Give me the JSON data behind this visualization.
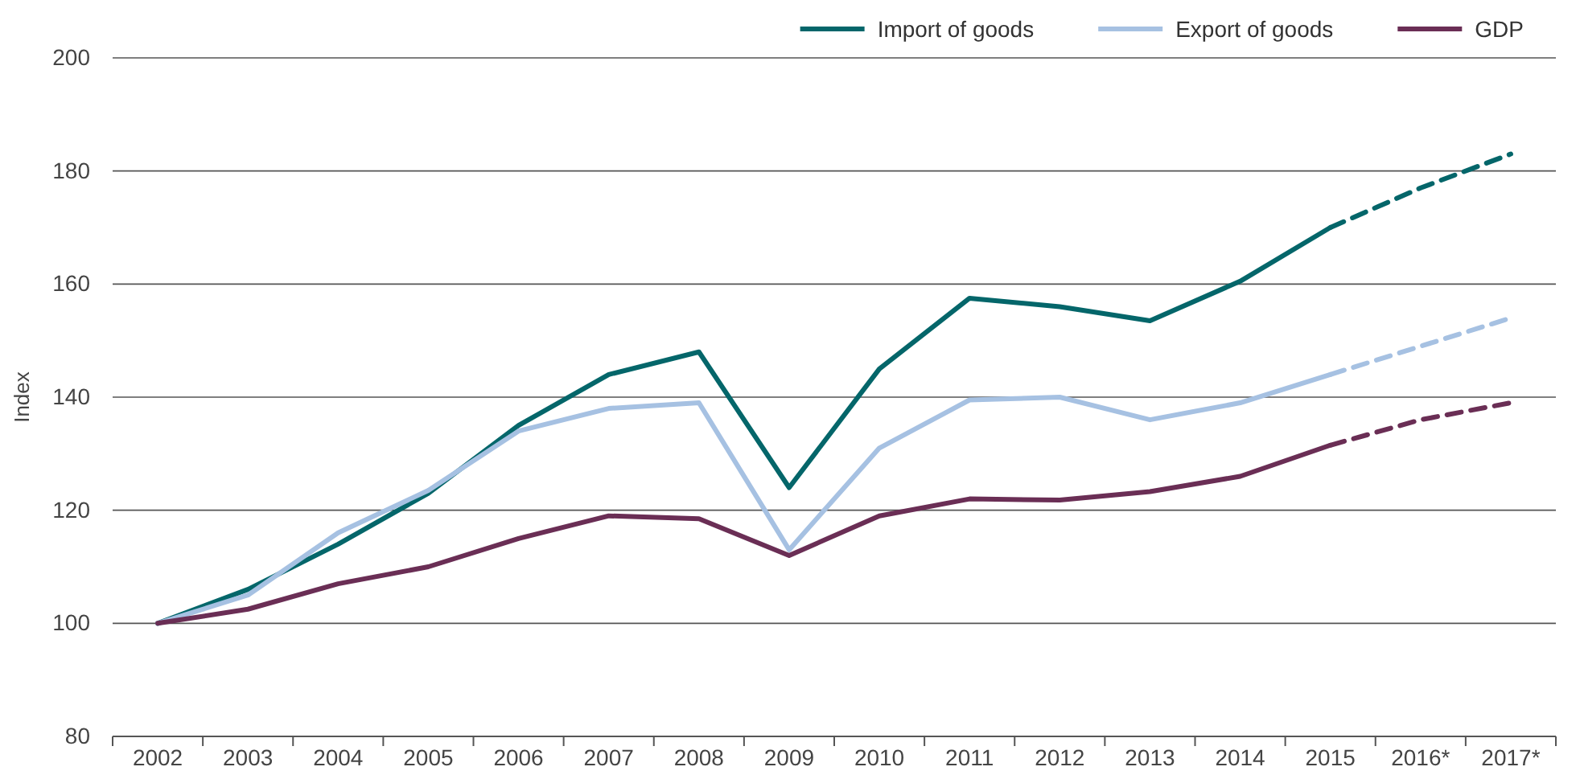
{
  "chart_data": {
    "type": "line",
    "ylabel": "Index",
    "categories": [
      "2002",
      "2003",
      "2004",
      "2005",
      "2006",
      "2007",
      "2008",
      "2009",
      "2010",
      "2011",
      "2012",
      "2013",
      "2014",
      "2015",
      "2016*",
      "2017*"
    ],
    "series": [
      {
        "name": "Import of goods",
        "color": "#04666a",
        "values": [
          100,
          106,
          114,
          123,
          135,
          144,
          148,
          124,
          145,
          157.5,
          156,
          153.5,
          160.5,
          170,
          null,
          null
        ]
      },
      {
        "name": "Export of goods",
        "color": "#a6c1e2",
        "values": [
          100,
          105,
          116,
          123.5,
          134,
          138,
          139,
          113,
          131,
          139.5,
          140,
          136,
          139,
          144,
          null,
          null
        ]
      },
      {
        "name": "GDP",
        "color": "#6a2e55",
        "values": [
          100,
          102.5,
          107,
          110,
          115,
          119,
          118.5,
          112,
          119,
          122,
          121.8,
          123.3,
          126,
          131.5,
          null,
          null
        ]
      },
      {
        "color": "#04666a",
        "line_style": "dashed",
        "values": [
          null,
          null,
          null,
          null,
          null,
          null,
          null,
          null,
          null,
          null,
          null,
          null,
          null,
          170,
          177,
          183
        ]
      },
      {
        "color": "#a6c1e2",
        "line_style": "dashed",
        "values": [
          null,
          null,
          null,
          null,
          null,
          null,
          null,
          null,
          null,
          null,
          null,
          null,
          null,
          144,
          149,
          154
        ]
      },
      {
        "color": "#6a2e55",
        "line_style": "dashed",
        "values": [
          null,
          null,
          null,
          null,
          null,
          null,
          null,
          null,
          null,
          null,
          null,
          null,
          null,
          131.5,
          136,
          139
        ]
      }
    ],
    "ylim": [
      80,
      200
    ],
    "yticks": [
      80,
      100,
      120,
      140,
      160,
      180,
      200
    ],
    "grid": "y",
    "legend": "top right",
    "line_style": "solid",
    "marker": "none"
  }
}
